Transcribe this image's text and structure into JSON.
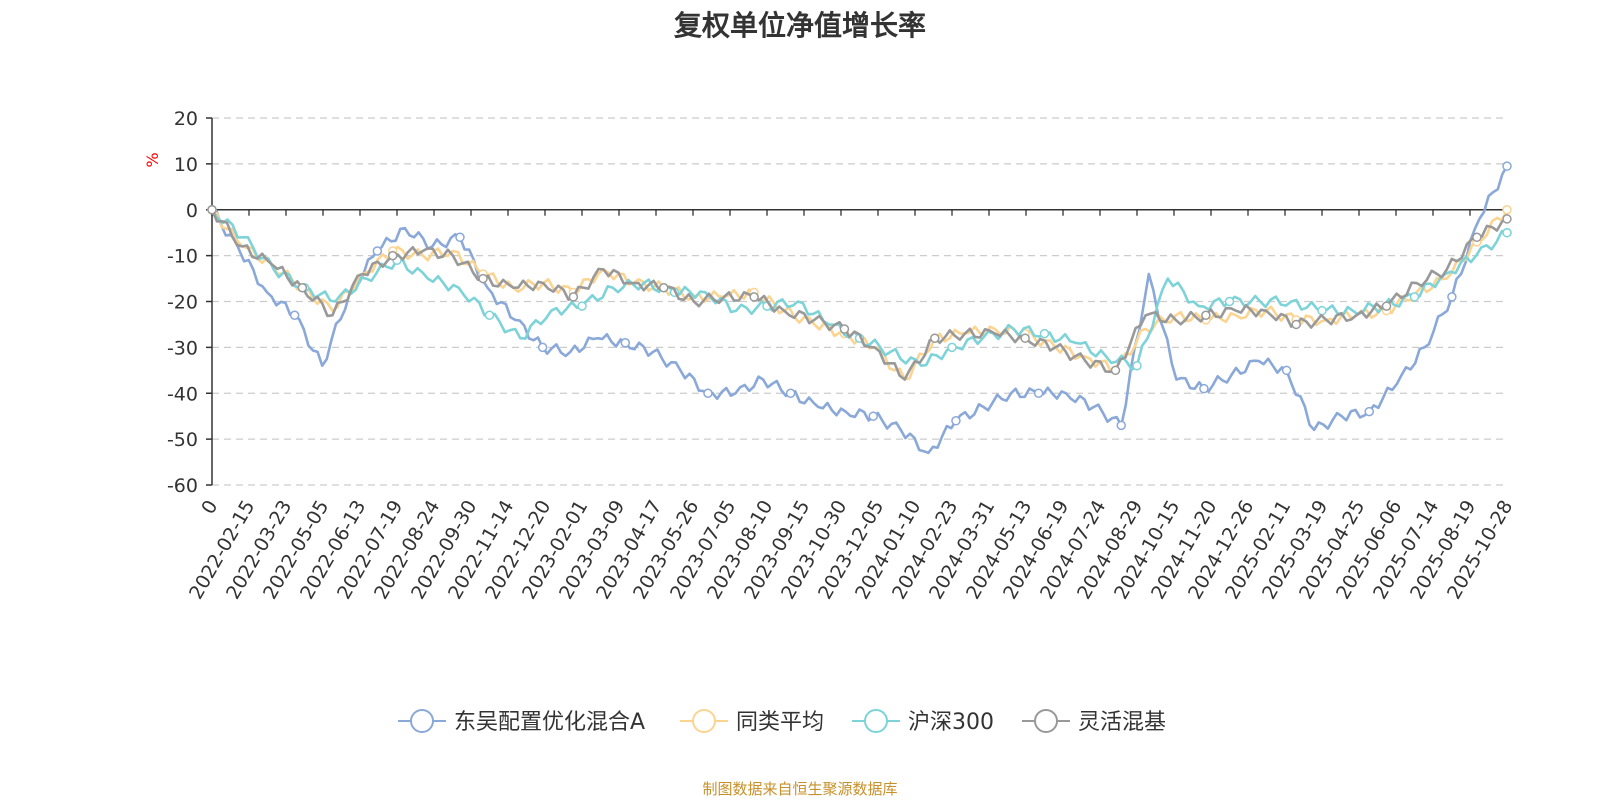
{
  "title": "复权单位净值增长率",
  "footer": "制图数据来自恒生聚源数据库",
  "colors": {
    "fund": "#8aa8d8",
    "peer": "#fbd491",
    "index": "#7dd3d8",
    "flexible": "#999999",
    "ylabel": "#ff0000",
    "grid": "#cccccc",
    "axis": "#333333"
  },
  "chart_data": {
    "type": "line",
    "title": "复权单位净值增长率",
    "ylabel": "%",
    "ylim": [
      -60,
      20
    ],
    "yticks": [
      20,
      10,
      0,
      -10,
      -20,
      -30,
      -40,
      -50,
      -60
    ],
    "x_ticks": [
      "0",
      "2022-02-15",
      "2022-03-23",
      "2022-05-05",
      "2022-06-13",
      "2022-07-19",
      "2022-08-24",
      "2022-09-30",
      "2022-11-14",
      "2022-12-20",
      "2023-02-01",
      "2023-03-09",
      "2023-04-17",
      "2023-05-26",
      "2023-07-05",
      "2023-08-10",
      "2023-09-15",
      "2023-10-30",
      "2023-12-05",
      "2024-01-10",
      "2024-02-23",
      "2024-03-31",
      "2024-05-13",
      "2024-06-19",
      "2024-07-24",
      "2024-08-29",
      "2024-10-15",
      "2024-11-20",
      "2024-12-26",
      "2025-02-11",
      "2025-03-19",
      "2025-04-25",
      "2025-06-06",
      "2025-07-14",
      "2025-08-19",
      "2025-10-28"
    ],
    "grid": true,
    "legend_position": "bottom",
    "series": [
      {
        "name": "东吴配置优化混合A",
        "color_key": "fund",
        "values": [
          0,
          -9,
          -18,
          -23,
          -34,
          -18,
          -9,
          -4,
          -8,
          -6,
          -17,
          -24,
          -30,
          -31,
          -28,
          -29,
          -31,
          -35,
          -40,
          -40,
          -37,
          -40,
          -43,
          -44,
          -45,
          -48,
          -53,
          -46,
          -43,
          -40,
          -40,
          -40,
          -43,
          -47,
          -14,
          -37,
          -39,
          -36,
          -33,
          -35,
          -48,
          -45,
          -44,
          -38,
          -30,
          -19,
          -2,
          9.5
        ]
      },
      {
        "name": "同类平均",
        "color_key": "peer",
        "values": [
          0,
          -8,
          -12,
          -17,
          -22,
          -14,
          -9,
          -10,
          -9,
          -14,
          -17,
          -16,
          -18,
          -13,
          -16,
          -17,
          -19,
          -19,
          -18,
          -22,
          -25,
          -27,
          -30,
          -37,
          -28,
          -27,
          -26,
          -27,
          -30,
          -32,
          -35,
          -26,
          -23,
          -24,
          -23,
          -22,
          -24,
          -24,
          -23,
          -22,
          -18,
          -15,
          -7,
          0
        ]
      },
      {
        "name": "沪深300",
        "color_key": "index",
        "values": [
          0,
          -6,
          -13,
          -17,
          -20,
          -15,
          -11,
          -15,
          -17,
          -23,
          -28,
          -22,
          -21,
          -17,
          -16,
          -18,
          -18,
          -22,
          -21,
          -20,
          -25,
          -28,
          -31,
          -34,
          -30,
          -28,
          -26,
          -27,
          -29,
          -32,
          -34,
          -15,
          -21,
          -20,
          -20,
          -20,
          -22,
          -22,
          -21,
          -19,
          -14,
          -10,
          -5
        ]
      },
      {
        "name": "灵活混基",
        "color_key": "flexible",
        "values": [
          0,
          -8,
          -12,
          -17,
          -23,
          -14,
          -10,
          -9,
          -10,
          -15,
          -17,
          -16,
          -19,
          -13,
          -16,
          -17,
          -20,
          -19,
          -19,
          -22,
          -24,
          -26,
          -30,
          -37,
          -28,
          -27,
          -27,
          -28,
          -30,
          -33,
          -35,
          -23,
          -24,
          -23,
          -22,
          -22,
          -25,
          -24,
          -23,
          -21,
          -16,
          -13,
          -6,
          -2
        ]
      }
    ]
  },
  "legend": [
    {
      "label": "东吴配置优化混合A",
      "color_key": "fund"
    },
    {
      "label": "同类平均",
      "color_key": "peer"
    },
    {
      "label": "沪深300",
      "color_key": "index"
    },
    {
      "label": "灵活混基",
      "color_key": "flexible"
    }
  ]
}
